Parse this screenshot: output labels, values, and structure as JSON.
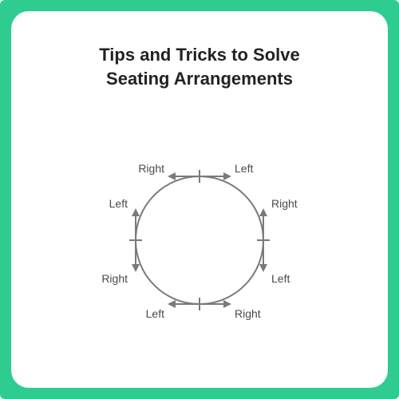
{
  "title": {
    "line1": "Tips and Tricks to Solve",
    "line2": "Seating Arrangements"
  },
  "title_fontsize": 22,
  "title_color": "#222222",
  "frame_background": "#2ecc8f",
  "card_background": "#ffffff",
  "diagram": {
    "type": "diagram",
    "circle_radius": 80,
    "stroke_color": "#7a7a7a",
    "stroke_width": 2,
    "label_color": "#4a4a4a",
    "label_fontsize": 14,
    "positions": [
      {
        "name": "top",
        "right_label": "Right",
        "left_label": "Left"
      },
      {
        "name": "right",
        "right_label": "Right",
        "left_label": "Left"
      },
      {
        "name": "bottom",
        "right_label": "Right",
        "left_label": "Left"
      },
      {
        "name": "left",
        "right_label": "Right",
        "left_label": "Left"
      }
    ],
    "arrow_length": 38,
    "tick_length": 16
  }
}
